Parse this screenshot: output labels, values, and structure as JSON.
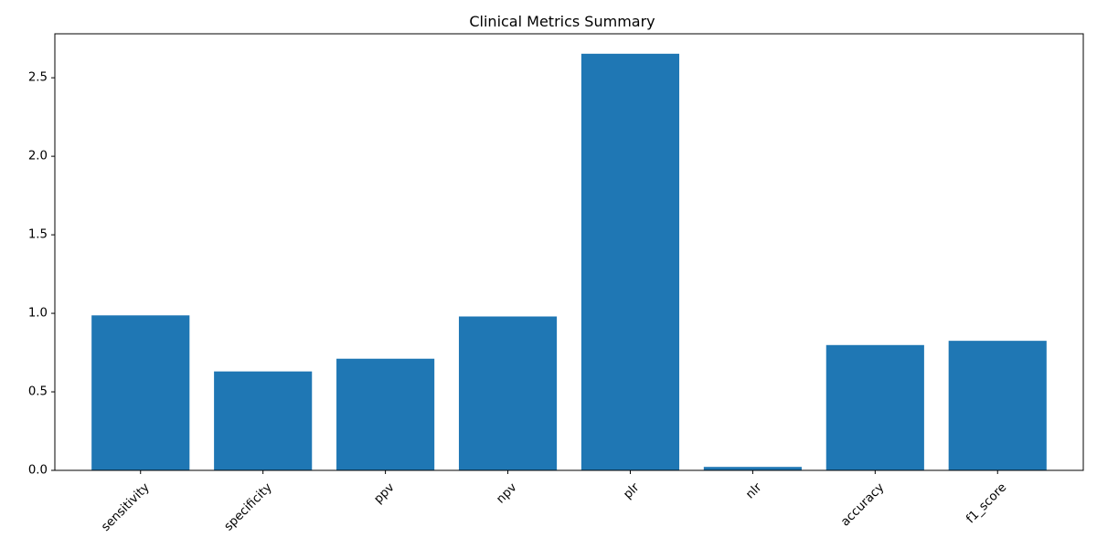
{
  "chart_data": {
    "type": "bar",
    "title": "Clinical Metrics Summary",
    "xlabel": "",
    "ylabel": "",
    "categories": [
      "sensitivity",
      "specificity",
      "ppv",
      "npv",
      "plr",
      "nlr",
      "accuracy",
      "f1_score"
    ],
    "values": [
      0.987,
      0.63,
      0.711,
      0.98,
      2.653,
      0.022,
      0.798,
      0.825
    ],
    "ylim": [
      0,
      2.78
    ],
    "yticks": [
      0.0,
      0.5,
      1.0,
      1.5,
      2.0,
      2.5
    ],
    "ytick_labels": [
      "0.0",
      "0.5",
      "1.0",
      "1.5",
      "2.0",
      "2.5"
    ],
    "xtick_rotation": 45,
    "grid": false,
    "legend": "none",
    "bar_color": "#1f77b4"
  }
}
